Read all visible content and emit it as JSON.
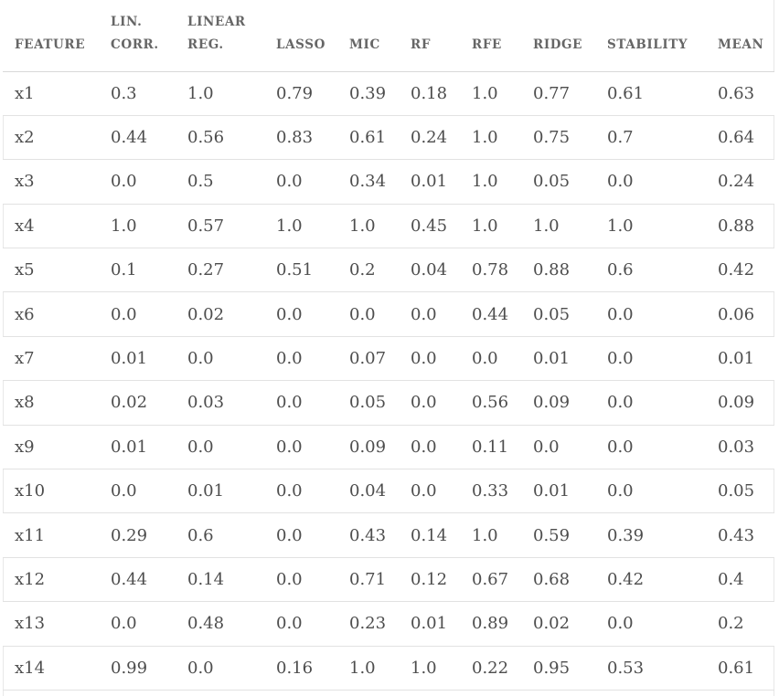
{
  "table": {
    "headers": [
      [
        "FEATURE"
      ],
      [
        "LIN.",
        "CORR."
      ],
      [
        "LINEAR",
        "REG."
      ],
      [
        "LASSO"
      ],
      [
        "MIC"
      ],
      [
        "RF"
      ],
      [
        "RFE"
      ],
      [
        "RIDGE"
      ],
      [
        "STABILITY"
      ],
      [
        "MEAN"
      ]
    ],
    "rows": [
      [
        "x1",
        "0.3",
        "1.0",
        "0.79",
        "0.39",
        "0.18",
        "1.0",
        "0.77",
        "0.61",
        "0.63"
      ],
      [
        "x2",
        "0.44",
        "0.56",
        "0.83",
        "0.61",
        "0.24",
        "1.0",
        "0.75",
        "0.7",
        "0.64"
      ],
      [
        "x3",
        "0.0",
        "0.5",
        "0.0",
        "0.34",
        "0.01",
        "1.0",
        "0.05",
        "0.0",
        "0.24"
      ],
      [
        "x4",
        "1.0",
        "0.57",
        "1.0",
        "1.0",
        "0.45",
        "1.0",
        "1.0",
        "1.0",
        "0.88"
      ],
      [
        "x5",
        "0.1",
        "0.27",
        "0.51",
        "0.2",
        "0.04",
        "0.78",
        "0.88",
        "0.6",
        "0.42"
      ],
      [
        "x6",
        "0.0",
        "0.02",
        "0.0",
        "0.0",
        "0.0",
        "0.44",
        "0.05",
        "0.0",
        "0.06"
      ],
      [
        "x7",
        "0.01",
        "0.0",
        "0.0",
        "0.07",
        "0.0",
        "0.0",
        "0.01",
        "0.0",
        "0.01"
      ],
      [
        "x8",
        "0.02",
        "0.03",
        "0.0",
        "0.05",
        "0.0",
        "0.56",
        "0.09",
        "0.0",
        "0.09"
      ],
      [
        "x9",
        "0.01",
        "0.0",
        "0.0",
        "0.09",
        "0.0",
        "0.11",
        "0.0",
        "0.0",
        "0.03"
      ],
      [
        "x10",
        "0.0",
        "0.01",
        "0.0",
        "0.04",
        "0.0",
        "0.33",
        "0.01",
        "0.0",
        "0.05"
      ],
      [
        "x11",
        "0.29",
        "0.6",
        "0.0",
        "0.43",
        "0.14",
        "1.0",
        "0.59",
        "0.39",
        "0.43"
      ],
      [
        "x12",
        "0.44",
        "0.14",
        "0.0",
        "0.71",
        "0.12",
        "0.67",
        "0.68",
        "0.42",
        "0.4"
      ],
      [
        "x13",
        "0.0",
        "0.48",
        "0.0",
        "0.23",
        "0.01",
        "0.89",
        "0.02",
        "0.0",
        "0.2"
      ],
      [
        "x14",
        "0.99",
        "0.0",
        "0.16",
        "1.0",
        "1.0",
        "0.22",
        "0.95",
        "0.53",
        "0.61"
      ]
    ]
  }
}
